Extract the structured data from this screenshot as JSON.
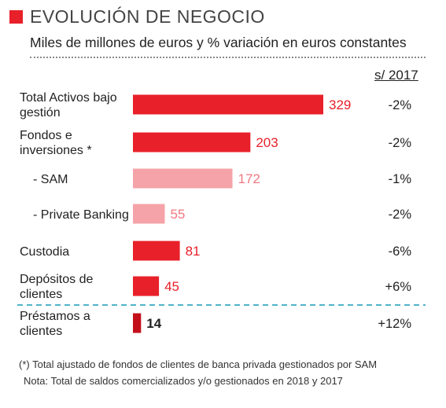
{
  "header": {
    "title": "EVOLUCIÓN DE NEGOCIO",
    "subtitle": "Miles de millones de euros y % variación en euros constantes",
    "variation_header": "s/ 2017"
  },
  "colors": {
    "accent": "#e8202a",
    "sub_bar": "#f5a3a8",
    "sub_text": "#f07880",
    "loan_bar": "#c4101a",
    "divider": "#4fb3c8"
  },
  "chart_data": {
    "type": "bar",
    "orientation": "horizontal",
    "title": "EVOLUCIÓN DE NEGOCIO",
    "subtitle": "Miles de millones de euros y % variación en euros constantes",
    "categories": [
      [
        "Total Activos bajo",
        "gestión"
      ],
      [
        "Fondos e",
        "inversiones *"
      ],
      [
        "- SAM"
      ],
      [
        "- Private Banking"
      ],
      [
        "Custodia"
      ],
      [
        "Depósitos de",
        "clientes"
      ],
      [
        "Préstamos a",
        "clientes"
      ]
    ],
    "values": [
      329,
      203,
      172,
      55,
      81,
      45,
      14
    ],
    "value_labels": [
      "329",
      "203",
      "172",
      "55",
      "81",
      "45",
      "14"
    ],
    "variations": [
      "-2%",
      "-2%",
      "-1%",
      "-2%",
      "-6%",
      "+6%",
      "+12%"
    ],
    "styles": [
      "main",
      "main",
      "sub",
      "sub",
      "main",
      "main",
      "loan"
    ],
    "xlim": [
      0,
      329
    ],
    "grid": false,
    "legend": "none"
  },
  "footnotes": {
    "note1": "(*) Total ajustado de fondos de clientes de banca privada gestionados por SAM",
    "note2": "Nota: Total de saldos comercializados y/o gestionados en 2018 y 2017"
  }
}
